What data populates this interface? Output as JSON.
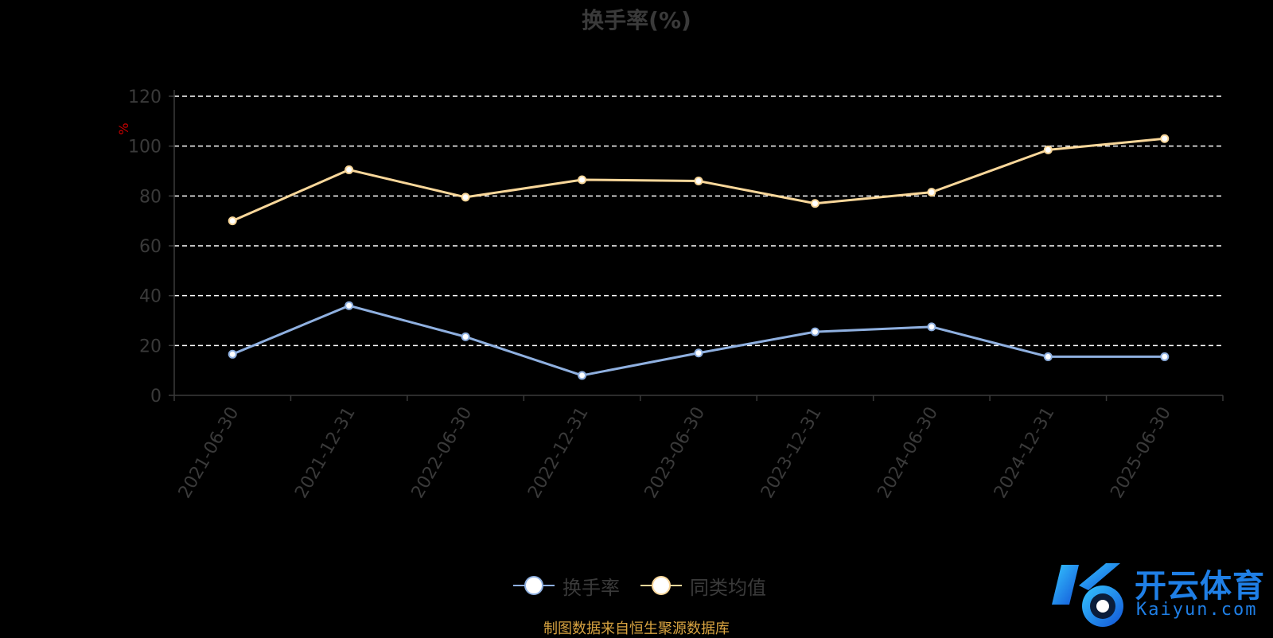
{
  "title": "换手率(%)",
  "source_note": "制图数据来自恒生聚源数据库",
  "legend": [
    {
      "label": "换手率",
      "color": "#8fb0e0"
    },
    {
      "label": "同类均值",
      "color": "#f9d79a"
    }
  ],
  "logo": {
    "cn": "开云体育",
    "en": "Kaiyun.com"
  },
  "colors": {
    "axis": "#3a3a3a",
    "unit": "#cc0000",
    "grid": "#ffffff"
  },
  "chart_data": {
    "type": "line",
    "unit_label": "%",
    "categories": [
      "2021-06-30",
      "2021-12-31",
      "2022-06-30",
      "2022-12-31",
      "2023-06-30",
      "2023-12-31",
      "2024-06-30",
      "2024-12-31",
      "2025-06-30"
    ],
    "ylim": [
      0,
      120
    ],
    "yticks": [
      0,
      20,
      40,
      60,
      80,
      100,
      120
    ],
    "grid": true,
    "legend_position": "bottom",
    "series": [
      {
        "name": "换手率",
        "values": [
          16.5,
          36,
          23.5,
          8,
          17,
          25.5,
          27.5,
          15.5,
          15.5
        ]
      },
      {
        "name": "同类均值",
        "values": [
          70,
          90.5,
          79.5,
          86.5,
          86,
          77,
          81.5,
          98.5,
          103
        ]
      }
    ]
  }
}
